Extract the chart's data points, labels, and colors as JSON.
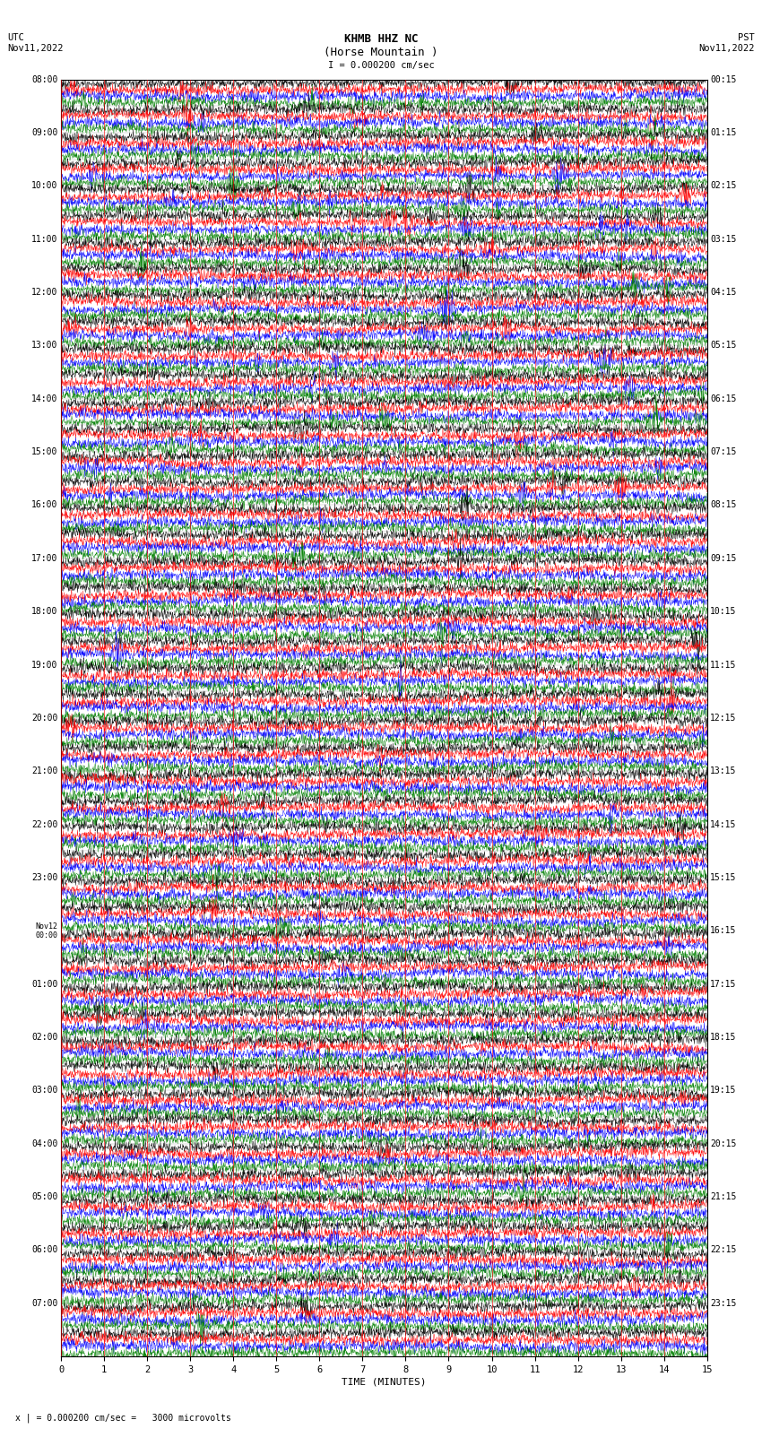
{
  "title_line1": "KHMB HHZ NC",
  "title_line2": "(Horse Mountain )",
  "scale_label": "I = 0.000200 cm/sec",
  "left_header": "UTC\nNov11,2022",
  "right_header": "PST\nNov11,2022",
  "footer_note": "x | = 0.000200 cm/sec =   3000 microvolts",
  "xlabel": "TIME (MINUTES)",
  "left_times": [
    "08:00",
    "09:00",
    "10:00",
    "11:00",
    "12:00",
    "13:00",
    "14:00",
    "15:00",
    "16:00",
    "17:00",
    "18:00",
    "19:00",
    "20:00",
    "21:00",
    "22:00",
    "23:00",
    "Nov12\n00:00",
    "01:00",
    "02:00",
    "03:00",
    "04:00",
    "05:00",
    "06:00",
    "07:00"
  ],
  "right_times": [
    "00:15",
    "01:15",
    "02:15",
    "03:15",
    "04:15",
    "05:15",
    "06:15",
    "07:15",
    "08:15",
    "09:15",
    "10:15",
    "11:15",
    "12:15",
    "13:15",
    "14:15",
    "15:15",
    "16:15",
    "17:15",
    "18:15",
    "19:15",
    "20:15",
    "21:15",
    "22:15",
    "23:15"
  ],
  "num_rows": 48,
  "traces_per_row": 4,
  "colors": [
    "black",
    "red",
    "blue",
    "green"
  ],
  "bg_color": "white",
  "xmin": 0,
  "xmax": 15,
  "xticks": [
    0,
    1,
    2,
    3,
    4,
    5,
    6,
    7,
    8,
    9,
    10,
    11,
    12,
    13,
    14,
    15
  ],
  "samples_per_row": 1800,
  "grid_color": "black",
  "vline_color": "red"
}
